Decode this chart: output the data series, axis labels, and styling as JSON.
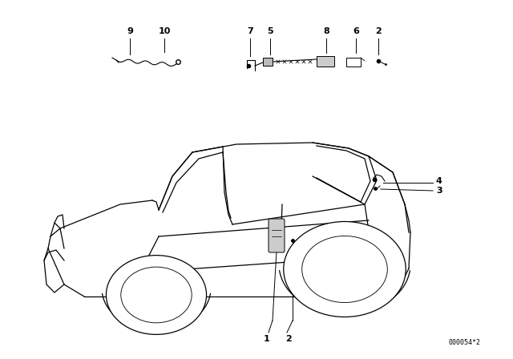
{
  "bg_color": "#ffffff",
  "line_color": "#000000",
  "fig_width": 6.4,
  "fig_height": 4.48,
  "dpi": 100,
  "diagram_id": "000054*2"
}
